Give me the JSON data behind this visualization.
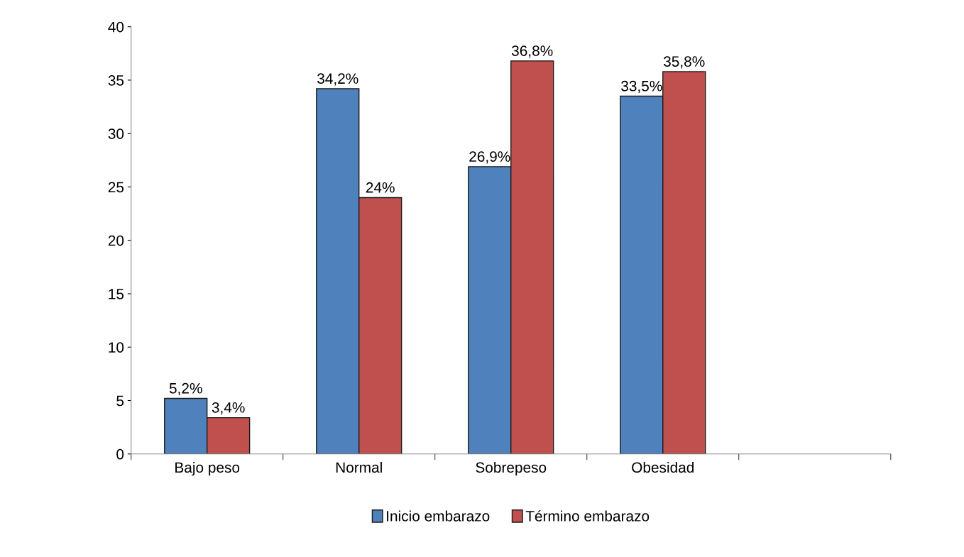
{
  "chart_data": {
    "type": "bar",
    "categories": [
      "Bajo peso",
      "Normal",
      "Sobrepeso",
      "Obesidad",
      null
    ],
    "series": [
      {
        "name": "Inicio embarazo",
        "color": "#4f81bd",
        "values": [
          5.2,
          34.2,
          26.9,
          33.5,
          null
        ],
        "value_labels": [
          "5,2%",
          "34,2%",
          "26,9%",
          "33,5%",
          null
        ]
      },
      {
        "name": "Término embarazo",
        "color": "#c0504d",
        "values": [
          3.4,
          24,
          36.8,
          35.8,
          null
        ],
        "value_labels": [
          "3,4%",
          "24%",
          "36,8%",
          "35,8%",
          null
        ]
      }
    ],
    "ylim": [
      0,
      40
    ],
    "yticks": [
      0,
      5,
      10,
      15,
      20,
      25,
      30,
      35,
      40
    ],
    "grid": false,
    "legend": "bottom"
  }
}
